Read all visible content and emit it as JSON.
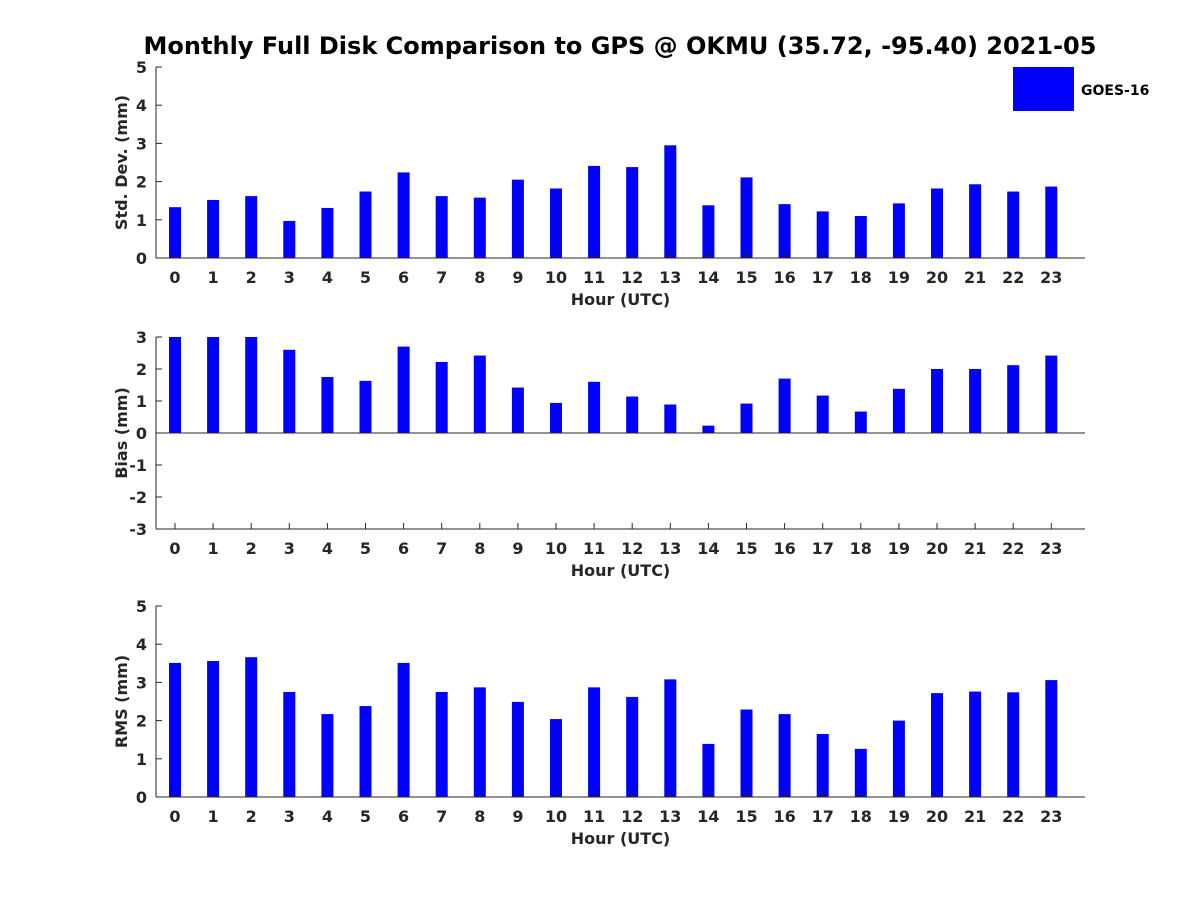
{
  "chart_data": {
    "type": "bar",
    "title": "Monthly Full Disk Comparison to GPS @ OKMU (35.72, -95.40) 2021-05",
    "legend": {
      "placement": "top-right",
      "entries": [
        "GOES-16"
      ]
    },
    "bar_color": "#0000ff",
    "grid": false,
    "categories": [
      "0",
      "1",
      "2",
      "3",
      "4",
      "5",
      "6",
      "7",
      "8",
      "9",
      "10",
      "11",
      "12",
      "13",
      "14",
      "15",
      "16",
      "17",
      "18",
      "19",
      "20",
      "21",
      "22",
      "23"
    ],
    "panels": [
      {
        "id": "std",
        "ylabel": "Std. Dev. (mm)",
        "xlabel": "Hour (UTC)",
        "ylim": [
          0,
          5
        ],
        "yticks": [
          "0",
          "1",
          "2",
          "3",
          "4",
          "5"
        ],
        "series": [
          {
            "name": "GOES-16",
            "values": [
              1.33,
              1.52,
              1.62,
              0.97,
              1.31,
              1.74,
              2.24,
              1.62,
              1.58,
              2.05,
              1.82,
              2.41,
              2.38,
              2.95,
              1.38,
              2.11,
              1.41,
              1.22,
              1.1,
              1.43,
              1.82,
              1.93,
              1.74,
              1.87
            ]
          }
        ]
      },
      {
        "id": "bias",
        "ylabel": "Bias (mm)",
        "xlabel": "Hour (UTC)",
        "ylim": [
          -3,
          3
        ],
        "yticks": [
          "-3",
          "-2",
          "-1",
          "0",
          "1",
          "2",
          "3"
        ],
        "series": [
          {
            "name": "GOES-16",
            "values": [
              3.0,
              3.0,
              3.0,
              2.6,
              1.75,
              1.63,
              2.7,
              2.22,
              2.42,
              1.42,
              0.94,
              1.6,
              1.14,
              0.89,
              0.23,
              0.92,
              1.7,
              1.17,
              0.67,
              1.38,
              2.0,
              2.0,
              2.12,
              2.42
            ]
          }
        ]
      },
      {
        "id": "rms",
        "ylabel": "RMS (mm)",
        "xlabel": "Hour (UTC)",
        "ylim": [
          0,
          5
        ],
        "yticks": [
          "0",
          "1",
          "2",
          "3",
          "4",
          "5"
        ],
        "series": [
          {
            "name": "GOES-16",
            "values": [
              3.51,
              3.56,
              3.66,
              2.75,
              2.17,
              2.38,
              3.51,
              2.75,
              2.87,
              2.49,
              2.04,
              2.87,
              2.62,
              3.08,
              1.39,
              2.29,
              2.17,
              1.65,
              1.26,
              2.0,
              2.72,
              2.76,
              2.74,
              3.06
            ]
          }
        ]
      }
    ]
  }
}
